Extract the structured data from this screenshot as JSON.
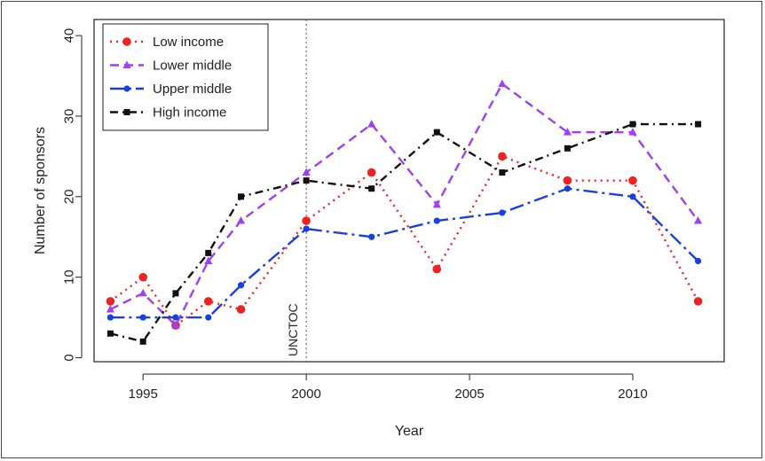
{
  "chart_data": {
    "type": "line",
    "xlabel": "Year",
    "ylabel": "Number of sponsors",
    "xlim": [
      1993.5,
      2012.8
    ],
    "ylim": [
      -0.5,
      42
    ],
    "x_ticks": [
      1995,
      2000,
      2005,
      2010
    ],
    "y_ticks": [
      0,
      10,
      20,
      30,
      40
    ],
    "x": [
      1994,
      1995,
      1996,
      1997,
      1998,
      2000,
      2002,
      2004,
      2006,
      2008,
      2010,
      2012
    ],
    "legend_position": "top-left",
    "annotation": {
      "label": "UNCTOC",
      "x": 2000
    },
    "series": [
      {
        "name": "Low income",
        "color": "#ee2222",
        "marker": "circle",
        "dash": "2,5",
        "values": [
          7,
          10,
          4,
          7,
          6,
          17,
          23,
          11,
          25,
          22,
          22,
          7
        ]
      },
      {
        "name": "Lower middle",
        "color": "#a040f0",
        "marker": "triangle",
        "dash": "10,6",
        "values": [
          6,
          8,
          4,
          12,
          17,
          23,
          29,
          19,
          34,
          28,
          28,
          17
        ]
      },
      {
        "name": "Upper middle",
        "color": "#1a3fe0",
        "marker": "dot",
        "dash": "16,5,3,5",
        "values": [
          5,
          5,
          5,
          5,
          9,
          16,
          15,
          17,
          18,
          21,
          20,
          12
        ]
      },
      {
        "name": "High income",
        "color": "#111111",
        "marker": "square",
        "dash": "9,5,2,5",
        "values": [
          3,
          2,
          8,
          13,
          20,
          22,
          21,
          28,
          23,
          26,
          29,
          29
        ]
      }
    ]
  }
}
